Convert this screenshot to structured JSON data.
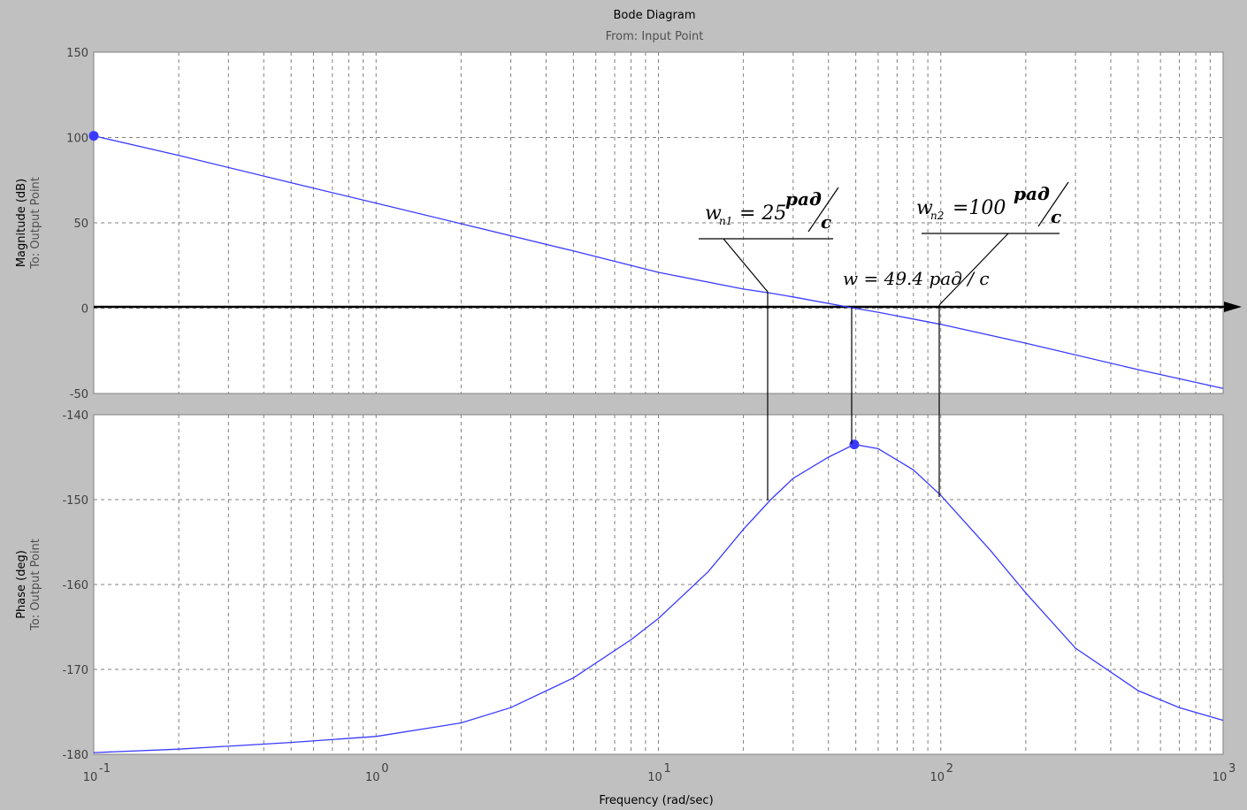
{
  "title": "Bode Diagram",
  "subtitle": "From: Input Point",
  "xlabel": "Frequency (rad/sec)",
  "colors": {
    "background": "#c0c0c0",
    "plot_bg": "#ffffff",
    "curve": "#3a3aff",
    "grid": "#808080",
    "axis": "#000000"
  },
  "chart_data": [
    {
      "type": "line",
      "panel": "magnitude",
      "ylabel": "Magnitude (dB)",
      "ylabel2": "To: Output Point",
      "xscale": "log",
      "xlim": [
        0.1,
        1000
      ],
      "ylim": [
        -50,
        150
      ],
      "yticks": [
        -50,
        0,
        50,
        100,
        150
      ],
      "grid": true,
      "x": [
        0.1,
        0.2,
        0.5,
        1,
        2,
        5,
        10,
        20,
        25,
        30,
        49.4,
        60,
        100,
        200,
        500,
        1000
      ],
      "y": [
        101,
        89.5,
        73.5,
        61.5,
        49.5,
        33.5,
        21,
        11.2,
        8.8,
        6.6,
        0,
        -2.4,
        -9.5,
        -20.5,
        -36,
        -47
      ],
      "markers": [
        {
          "x": 0.1,
          "y": 101
        }
      ]
    },
    {
      "type": "line",
      "panel": "phase",
      "ylabel": "Phase (deg)",
      "ylabel2": "To: Output Point",
      "xscale": "log",
      "xlim": [
        0.1,
        1000
      ],
      "ylim": [
        -180,
        -140
      ],
      "yticks": [
        -180,
        -170,
        -160,
        -150,
        -140
      ],
      "xticks": [
        "10",
        "10",
        "10",
        "10",
        "10"
      ],
      "xtick_exponents": [
        "-1",
        "0",
        "1",
        "2",
        "3"
      ],
      "grid": true,
      "x": [
        0.1,
        0.2,
        0.5,
        1,
        2,
        3,
        5,
        8,
        10,
        15,
        20,
        25,
        30,
        40,
        49.4,
        60,
        80,
        100,
        150,
        200,
        300,
        500,
        700,
        1000
      ],
      "y": [
        -179.8,
        -179.4,
        -178.6,
        -177.9,
        -176.3,
        -174.5,
        -171,
        -166.5,
        -164,
        -158.5,
        -153.5,
        -150,
        -147.5,
        -145,
        -143.5,
        -144,
        -146.5,
        -149.5,
        -156,
        -161,
        -167.5,
        -172.5,
        -174.5,
        -176
      ],
      "markers": [
        {
          "x": 49.4,
          "y": -143.5
        }
      ]
    }
  ],
  "annotations": {
    "wn1_base": "w",
    "wn1_sub": "n1",
    "wn1_eq": "= 25",
    "wn1_unit_top": "рад",
    "wn1_unit_bottom": "с",
    "wn2_base": "w",
    "wn2_sub": "n2",
    "wn2_eq": "=100",
    "wn2_unit_top": "рад",
    "wn2_unit_bottom": "с",
    "wc_text": "w = 49.4 рад / с",
    "wn1_freq": 25,
    "wn2_freq": 100,
    "wc_freq": 49.4
  }
}
